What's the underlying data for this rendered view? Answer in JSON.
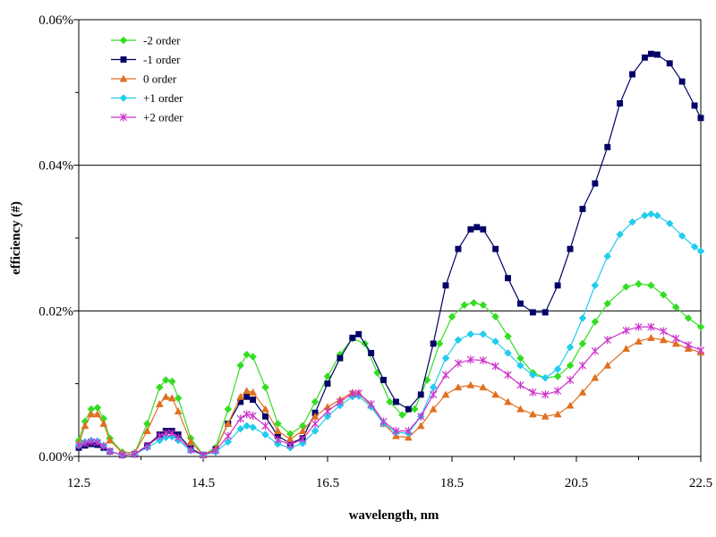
{
  "chart_data": {
    "type": "line",
    "xlabel": "wavelength, nm",
    "ylabel": "efficiency (#)",
    "xlim": [
      12.5,
      22.5
    ],
    "ylim": [
      0,
      0.06
    ],
    "x_ticks": [
      "12.5",
      "14.5",
      "16.5",
      "18.5",
      "20.5",
      "22.5"
    ],
    "y_ticks": [
      "0.00%",
      "0.02%",
      "0.04%",
      "0.06%"
    ],
    "grid": "horizontal major",
    "legend_position": "top-left",
    "series": [
      {
        "name": "-2 order",
        "color": "#33dd22",
        "marker": "diamond",
        "points": [
          [
            12.5,
            0.0022
          ],
          [
            12.6,
            0.0048
          ],
          [
            12.7,
            0.0065
          ],
          [
            12.8,
            0.0067
          ],
          [
            12.9,
            0.0052
          ],
          [
            13.0,
            0.0025
          ],
          [
            13.2,
            0.0006
          ],
          [
            13.4,
            0.0005
          ],
          [
            13.6,
            0.0045
          ],
          [
            13.8,
            0.0095
          ],
          [
            13.9,
            0.0105
          ],
          [
            14.0,
            0.0103
          ],
          [
            14.1,
            0.008
          ],
          [
            14.3,
            0.0025
          ],
          [
            14.5,
            0.0002
          ],
          [
            14.7,
            0.0012
          ],
          [
            14.9,
            0.0065
          ],
          [
            15.1,
            0.0125
          ],
          [
            15.2,
            0.014
          ],
          [
            15.3,
            0.0137
          ],
          [
            15.5,
            0.0095
          ],
          [
            15.7,
            0.0045
          ],
          [
            15.9,
            0.0031
          ],
          [
            16.1,
            0.0042
          ],
          [
            16.3,
            0.0075
          ],
          [
            16.5,
            0.011
          ],
          [
            16.7,
            0.014
          ],
          [
            16.9,
            0.0162
          ],
          [
            17.1,
            0.0155
          ],
          [
            17.3,
            0.0115
          ],
          [
            17.5,
            0.0075
          ],
          [
            17.7,
            0.0057
          ],
          [
            17.9,
            0.0065
          ],
          [
            18.1,
            0.0105
          ],
          [
            18.3,
            0.0155
          ],
          [
            18.5,
            0.0192
          ],
          [
            18.7,
            0.0208
          ],
          [
            18.85,
            0.0211
          ],
          [
            19.0,
            0.0208
          ],
          [
            19.2,
            0.0192
          ],
          [
            19.4,
            0.0165
          ],
          [
            19.6,
            0.0135
          ],
          [
            19.8,
            0.0115
          ],
          [
            20.0,
            0.0108
          ],
          [
            20.2,
            0.011
          ],
          [
            20.4,
            0.0125
          ],
          [
            20.6,
            0.0155
          ],
          [
            20.8,
            0.0185
          ],
          [
            21.0,
            0.021
          ],
          [
            21.3,
            0.0233
          ],
          [
            21.5,
            0.0237
          ],
          [
            21.7,
            0.0235
          ],
          [
            21.9,
            0.0222
          ],
          [
            22.1,
            0.0205
          ],
          [
            22.3,
            0.019
          ],
          [
            22.5,
            0.0178
          ]
        ]
      },
      {
        "name": "-1 order",
        "color": "#000066",
        "marker": "square",
        "points": [
          [
            12.5,
            0.0012
          ],
          [
            12.6,
            0.0015
          ],
          [
            12.7,
            0.0017
          ],
          [
            12.8,
            0.0016
          ],
          [
            12.9,
            0.0012
          ],
          [
            13.0,
            0.0007
          ],
          [
            13.2,
            0.0002
          ],
          [
            13.4,
            0.0003
          ],
          [
            13.6,
            0.0015
          ],
          [
            13.8,
            0.003
          ],
          [
            13.9,
            0.0035
          ],
          [
            14.0,
            0.0035
          ],
          [
            14.1,
            0.003
          ],
          [
            14.3,
            0.0011
          ],
          [
            14.5,
            0.0002
          ],
          [
            14.7,
            0.001
          ],
          [
            14.9,
            0.0045
          ],
          [
            15.1,
            0.0075
          ],
          [
            15.2,
            0.0082
          ],
          [
            15.3,
            0.0078
          ],
          [
            15.5,
            0.0055
          ],
          [
            15.7,
            0.0028
          ],
          [
            15.9,
            0.0018
          ],
          [
            16.1,
            0.0025
          ],
          [
            16.3,
            0.006
          ],
          [
            16.5,
            0.01
          ],
          [
            16.7,
            0.0135
          ],
          [
            16.9,
            0.0163
          ],
          [
            17.0,
            0.0168
          ],
          [
            17.2,
            0.0142
          ],
          [
            17.4,
            0.0105
          ],
          [
            17.6,
            0.0075
          ],
          [
            17.8,
            0.0065
          ],
          [
            18.0,
            0.0085
          ],
          [
            18.2,
            0.0155
          ],
          [
            18.4,
            0.0235
          ],
          [
            18.6,
            0.0285
          ],
          [
            18.8,
            0.0312
          ],
          [
            18.9,
            0.0315
          ],
          [
            19.0,
            0.0312
          ],
          [
            19.2,
            0.0285
          ],
          [
            19.4,
            0.0245
          ],
          [
            19.6,
            0.021
          ],
          [
            19.8,
            0.0198
          ],
          [
            20.0,
            0.0198
          ],
          [
            20.2,
            0.0235
          ],
          [
            20.4,
            0.0285
          ],
          [
            20.6,
            0.034
          ],
          [
            20.8,
            0.0375
          ],
          [
            21.0,
            0.0425
          ],
          [
            21.2,
            0.0485
          ],
          [
            21.4,
            0.0525
          ],
          [
            21.6,
            0.0548
          ],
          [
            21.7,
            0.0553
          ],
          [
            21.8,
            0.0552
          ],
          [
            22.0,
            0.054
          ],
          [
            22.2,
            0.0515
          ],
          [
            22.4,
            0.0482
          ],
          [
            22.5,
            0.0465
          ]
        ]
      },
      {
        "name": "0 order",
        "color": "#e07020",
        "marker": "triangle",
        "points": [
          [
            12.5,
            0.0018
          ],
          [
            12.6,
            0.0042
          ],
          [
            12.7,
            0.0058
          ],
          [
            12.8,
            0.0058
          ],
          [
            12.9,
            0.0045
          ],
          [
            13.0,
            0.0022
          ],
          [
            13.2,
            0.0005
          ],
          [
            13.4,
            0.0005
          ],
          [
            13.6,
            0.0035
          ],
          [
            13.8,
            0.0072
          ],
          [
            13.9,
            0.0082
          ],
          [
            14.0,
            0.008
          ],
          [
            14.1,
            0.0062
          ],
          [
            14.3,
            0.002
          ],
          [
            14.5,
            0.0002
          ],
          [
            14.7,
            0.001
          ],
          [
            14.9,
            0.0045
          ],
          [
            15.1,
            0.0082
          ],
          [
            15.2,
            0.009
          ],
          [
            15.3,
            0.0088
          ],
          [
            15.5,
            0.0065
          ],
          [
            15.7,
            0.0035
          ],
          [
            15.9,
            0.0024
          ],
          [
            16.1,
            0.0035
          ],
          [
            16.3,
            0.0055
          ],
          [
            16.5,
            0.0068
          ],
          [
            16.7,
            0.0078
          ],
          [
            16.9,
            0.0088
          ],
          [
            17.0,
            0.0087
          ],
          [
            17.2,
            0.007
          ],
          [
            17.4,
            0.0045
          ],
          [
            17.6,
            0.0028
          ],
          [
            17.8,
            0.0026
          ],
          [
            18.0,
            0.0042
          ],
          [
            18.2,
            0.0065
          ],
          [
            18.4,
            0.0085
          ],
          [
            18.6,
            0.0095
          ],
          [
            18.8,
            0.0098
          ],
          [
            19.0,
            0.0095
          ],
          [
            19.2,
            0.0085
          ],
          [
            19.4,
            0.0075
          ],
          [
            19.6,
            0.0065
          ],
          [
            19.8,
            0.0058
          ],
          [
            20.0,
            0.0055
          ],
          [
            20.2,
            0.0058
          ],
          [
            20.4,
            0.007
          ],
          [
            20.6,
            0.0088
          ],
          [
            20.8,
            0.0108
          ],
          [
            21.0,
            0.0125
          ],
          [
            21.3,
            0.0148
          ],
          [
            21.5,
            0.0158
          ],
          [
            21.7,
            0.0163
          ],
          [
            21.9,
            0.016
          ],
          [
            22.1,
            0.0155
          ],
          [
            22.3,
            0.0148
          ],
          [
            22.5,
            0.0143
          ]
        ]
      },
      {
        "name": "+1 order",
        "color": "#22ccee",
        "marker": "diamond",
        "points": [
          [
            12.5,
            0.0015
          ],
          [
            12.6,
            0.002
          ],
          [
            12.7,
            0.0022
          ],
          [
            12.8,
            0.0021
          ],
          [
            12.9,
            0.0015
          ],
          [
            13.0,
            0.0007
          ],
          [
            13.2,
            0.0002
          ],
          [
            13.4,
            0.0003
          ],
          [
            13.6,
            0.0012
          ],
          [
            13.8,
            0.0022
          ],
          [
            13.9,
            0.0026
          ],
          [
            14.0,
            0.0027
          ],
          [
            14.1,
            0.0022
          ],
          [
            14.3,
            0.0008
          ],
          [
            14.5,
            0.0002
          ],
          [
            14.7,
            0.0006
          ],
          [
            14.9,
            0.002
          ],
          [
            15.1,
            0.0038
          ],
          [
            15.2,
            0.0042
          ],
          [
            15.3,
            0.004
          ],
          [
            15.5,
            0.003
          ],
          [
            15.7,
            0.0017
          ],
          [
            15.9,
            0.0012
          ],
          [
            16.1,
            0.0018
          ],
          [
            16.3,
            0.0035
          ],
          [
            16.5,
            0.0055
          ],
          [
            16.7,
            0.007
          ],
          [
            16.9,
            0.0082
          ],
          [
            17.0,
            0.0083
          ],
          [
            17.2,
            0.0068
          ],
          [
            17.4,
            0.0045
          ],
          [
            17.6,
            0.0033
          ],
          [
            17.8,
            0.0032
          ],
          [
            18.0,
            0.0055
          ],
          [
            18.2,
            0.0095
          ],
          [
            18.4,
            0.0135
          ],
          [
            18.6,
            0.016
          ],
          [
            18.8,
            0.0168
          ],
          [
            19.0,
            0.0168
          ],
          [
            19.2,
            0.0158
          ],
          [
            19.4,
            0.0142
          ],
          [
            19.6,
            0.0125
          ],
          [
            19.8,
            0.0112
          ],
          [
            20.0,
            0.0108
          ],
          [
            20.2,
            0.012
          ],
          [
            20.4,
            0.015
          ],
          [
            20.6,
            0.019
          ],
          [
            20.8,
            0.0235
          ],
          [
            21.0,
            0.0275
          ],
          [
            21.2,
            0.0305
          ],
          [
            21.4,
            0.0322
          ],
          [
            21.6,
            0.0331
          ],
          [
            21.7,
            0.0333
          ],
          [
            21.8,
            0.0331
          ],
          [
            22.0,
            0.032
          ],
          [
            22.2,
            0.0303
          ],
          [
            22.4,
            0.0288
          ],
          [
            22.5,
            0.0282
          ]
        ]
      },
      {
        "name": "+2 order",
        "color": "#cc33cc",
        "marker": "star",
        "points": [
          [
            12.5,
            0.0015
          ],
          [
            12.6,
            0.0018
          ],
          [
            12.7,
            0.002
          ],
          [
            12.8,
            0.0019
          ],
          [
            12.9,
            0.0014
          ],
          [
            13.0,
            0.0007
          ],
          [
            13.2,
            0.0002
          ],
          [
            13.4,
            0.0003
          ],
          [
            13.6,
            0.0014
          ],
          [
            13.8,
            0.0028
          ],
          [
            13.9,
            0.0032
          ],
          [
            14.0,
            0.0032
          ],
          [
            14.1,
            0.0026
          ],
          [
            14.3,
            0.0009
          ],
          [
            14.5,
            0.0002
          ],
          [
            14.7,
            0.0008
          ],
          [
            14.9,
            0.0028
          ],
          [
            15.1,
            0.0052
          ],
          [
            15.2,
            0.0058
          ],
          [
            15.3,
            0.0056
          ],
          [
            15.5,
            0.0042
          ],
          [
            15.7,
            0.0023
          ],
          [
            15.9,
            0.0016
          ],
          [
            16.1,
            0.0024
          ],
          [
            16.3,
            0.0045
          ],
          [
            16.5,
            0.0062
          ],
          [
            16.7,
            0.0075
          ],
          [
            16.9,
            0.0086
          ],
          [
            17.0,
            0.0087
          ],
          [
            17.2,
            0.0072
          ],
          [
            17.4,
            0.0048
          ],
          [
            17.6,
            0.0035
          ],
          [
            17.8,
            0.0035
          ],
          [
            18.0,
            0.0055
          ],
          [
            18.2,
            0.0085
          ],
          [
            18.4,
            0.0112
          ],
          [
            18.6,
            0.0128
          ],
          [
            18.8,
            0.0133
          ],
          [
            19.0,
            0.0132
          ],
          [
            19.2,
            0.0124
          ],
          [
            19.4,
            0.0112
          ],
          [
            19.6,
            0.0098
          ],
          [
            19.8,
            0.0088
          ],
          [
            20.0,
            0.0085
          ],
          [
            20.2,
            0.009
          ],
          [
            20.4,
            0.0105
          ],
          [
            20.6,
            0.0125
          ],
          [
            20.8,
            0.0145
          ],
          [
            21.0,
            0.016
          ],
          [
            21.3,
            0.0173
          ],
          [
            21.5,
            0.0178
          ],
          [
            21.7,
            0.0178
          ],
          [
            21.9,
            0.0172
          ],
          [
            22.1,
            0.0162
          ],
          [
            22.3,
            0.0153
          ],
          [
            22.5,
            0.0146
          ]
        ]
      }
    ]
  }
}
